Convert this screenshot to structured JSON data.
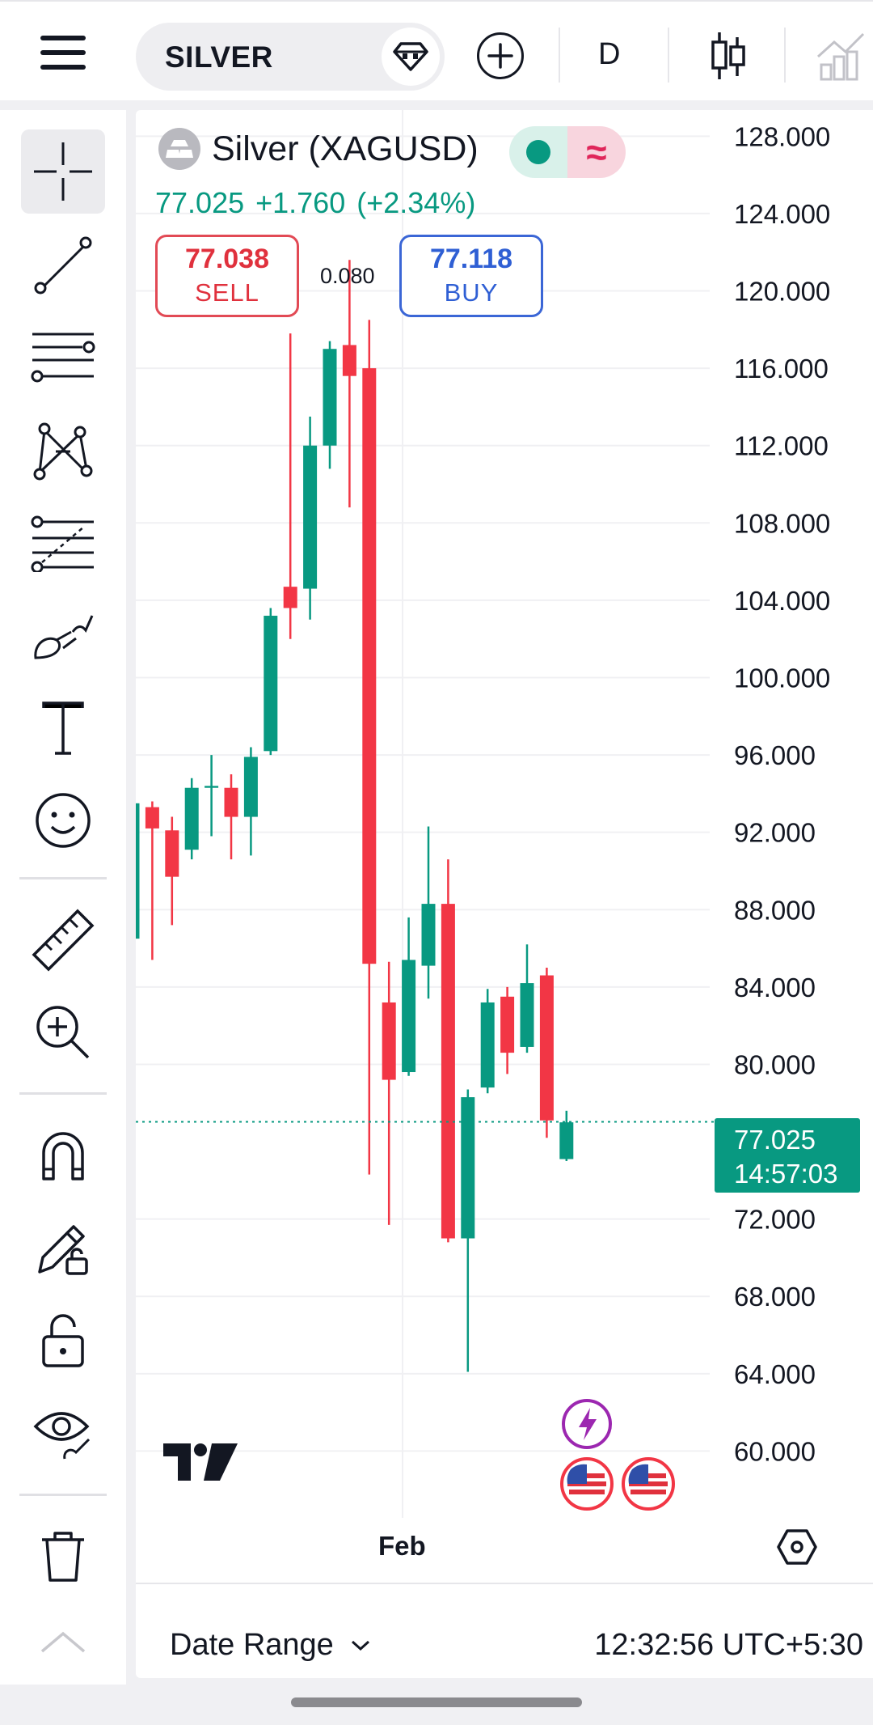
{
  "header": {
    "symbol": "SILVER",
    "interval": "D",
    "icons": [
      "menu-icon",
      "gem-icon",
      "plus-icon",
      "candles-icon",
      "compare-icon"
    ]
  },
  "toolbar": {
    "tools": [
      {
        "name": "crosshair-tool",
        "icon": "crosshair-icon",
        "active": true
      },
      {
        "name": "trend-line-tool",
        "icon": "trend-line-icon"
      },
      {
        "name": "horizontal-lines-tool",
        "icon": "horizontal-lines-icon"
      },
      {
        "name": "pattern-tool",
        "icon": "pattern-icon"
      },
      {
        "name": "fib-tool",
        "icon": "fib-retracement-icon"
      },
      {
        "name": "brush-tool",
        "icon": "brush-icon"
      },
      {
        "name": "text-tool",
        "icon": "text-icon"
      },
      {
        "name": "emoji-tool",
        "icon": "smiley-icon"
      },
      {
        "name": "ruler-tool",
        "icon": "ruler-icon"
      },
      {
        "name": "zoom-tool",
        "icon": "zoom-in-icon"
      },
      {
        "name": "magnet-tool",
        "icon": "magnet-icon"
      },
      {
        "name": "lock-drawing-tool",
        "icon": "pencil-lock-icon"
      },
      {
        "name": "lock-tool",
        "icon": "lock-icon"
      },
      {
        "name": "hide-tool",
        "icon": "eye-icon"
      },
      {
        "name": "delete-tool",
        "icon": "trash-icon"
      },
      {
        "name": "collapse-tool",
        "icon": "chevron-up-icon"
      }
    ]
  },
  "legend": {
    "name": "Silver (XAGUSD)",
    "last": "77.025",
    "change": "+1.760",
    "change_pct": "(+2.34%)",
    "sell_price": "77.038",
    "sell_label": "SELL",
    "buy_price": "77.118",
    "buy_label": "BUY",
    "spread": "0.080"
  },
  "price_label": {
    "price": "77.025",
    "countdown": "14:57:03"
  },
  "time_axis": {
    "label": "Feb"
  },
  "footer": {
    "date_range": "Date Range",
    "clock": "12:32:56 UTC+5:30"
  },
  "colors": {
    "up": "#089981",
    "down": "#f23645",
    "grid": "#f0f0f3",
    "last_line": "#089981"
  },
  "chart_data": {
    "type": "candlestick",
    "symbol": "Silver (XAGUSD)",
    "interval": "D",
    "y_ticks": [
      "128.000",
      "124.000",
      "120.000",
      "116.000",
      "112.000",
      "108.000",
      "104.000",
      "100.000",
      "96.000",
      "92.000",
      "88.000",
      "84.000",
      "80.000",
      "72.000",
      "68.000",
      "64.000",
      "60.000"
    ],
    "ylim": [
      57.8,
      128.6
    ],
    "last_price": 77.025,
    "candles": [
      {
        "o": 86.5,
        "h": 94.0,
        "l": 86.0,
        "c": 93.5
      },
      {
        "o": 93.3,
        "h": 93.6,
        "l": 85.4,
        "c": 92.2
      },
      {
        "o": 92.1,
        "h": 92.8,
        "l": 87.2,
        "c": 89.7
      },
      {
        "o": 91.1,
        "h": 94.8,
        "l": 90.6,
        "c": 94.3
      },
      {
        "o": 94.3,
        "h": 96.0,
        "l": 91.8,
        "c": 94.4
      },
      {
        "o": 94.3,
        "h": 95.0,
        "l": 90.6,
        "c": 92.8
      },
      {
        "o": 92.8,
        "h": 96.4,
        "l": 90.8,
        "c": 95.9
      },
      {
        "o": 96.2,
        "h": 103.6,
        "l": 96.0,
        "c": 103.2
      },
      {
        "o": 104.7,
        "h": 117.8,
        "l": 102.0,
        "c": 103.6
      },
      {
        "o": 104.6,
        "h": 113.5,
        "l": 103.0,
        "c": 112.0
      },
      {
        "o": 112.0,
        "h": 117.4,
        "l": 110.8,
        "c": 117.0
      },
      {
        "o": 117.2,
        "h": 121.6,
        "l": 108.8,
        "c": 115.6
      },
      {
        "o": 116.0,
        "h": 118.5,
        "l": 74.3,
        "c": 85.2
      },
      {
        "o": 83.2,
        "h": 85.3,
        "l": 71.7,
        "c": 79.2
      },
      {
        "o": 79.6,
        "h": 87.6,
        "l": 79.4,
        "c": 85.4
      },
      {
        "o": 85.1,
        "h": 92.3,
        "l": 83.4,
        "c": 88.3
      },
      {
        "o": 88.3,
        "h": 90.6,
        "l": 70.8,
        "c": 71.0
      },
      {
        "o": 71.0,
        "h": 78.7,
        "l": 64.1,
        "c": 78.3
      },
      {
        "o": 78.8,
        "h": 83.9,
        "l": 78.5,
        "c": 83.2
      },
      {
        "o": 83.5,
        "h": 84.0,
        "l": 79.5,
        "c": 80.6
      },
      {
        "o": 80.9,
        "h": 86.2,
        "l": 80.6,
        "c": 84.2
      },
      {
        "o": 84.6,
        "h": 85.0,
        "l": 76.2,
        "c": 77.1
      },
      {
        "o": 75.1,
        "h": 77.6,
        "l": 75.0,
        "c": 77.0
      }
    ]
  }
}
